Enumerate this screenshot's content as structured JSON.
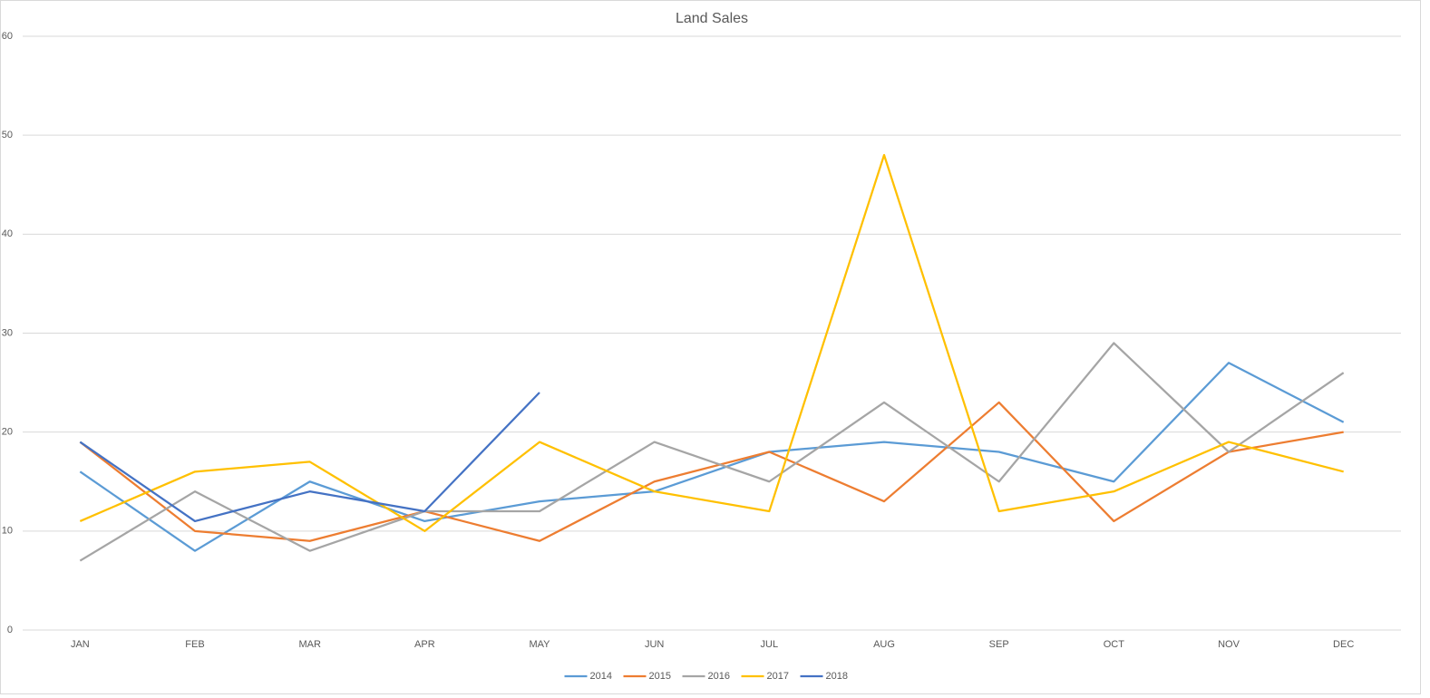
{
  "chart_data": {
    "type": "line",
    "title": "Land Sales",
    "categories": [
      "JAN",
      "FEB",
      "MAR",
      "APR",
      "MAY",
      "JUN",
      "JUL",
      "AUG",
      "SEP",
      "OCT",
      "NOV",
      "DEC"
    ],
    "series": [
      {
        "name": "2014",
        "color": "#5b9bd5",
        "values": [
          16,
          8,
          15,
          11,
          13,
          14,
          18,
          19,
          18,
          15,
          27,
          21
        ]
      },
      {
        "name": "2015",
        "color": "#ed7d31",
        "values": [
          19,
          10,
          9,
          12,
          9,
          15,
          18,
          13,
          23,
          11,
          18,
          20
        ]
      },
      {
        "name": "2016",
        "color": "#a5a5a5",
        "values": [
          7,
          14,
          8,
          12,
          12,
          19,
          15,
          23,
          15,
          29,
          18,
          26
        ]
      },
      {
        "name": "2017",
        "color": "#ffc000",
        "values": [
          11,
          16,
          17,
          10,
          19,
          14,
          12,
          48,
          12,
          14,
          19,
          16
        ]
      },
      {
        "name": "2018",
        "color": "#4472c4",
        "values": [
          19,
          11,
          14,
          12,
          24,
          null,
          null,
          null,
          null,
          null,
          null,
          null
        ]
      }
    ],
    "ylim": [
      0,
      60
    ],
    "yticks": [
      0,
      10,
      20,
      30,
      40,
      50,
      60
    ],
    "grid": true,
    "legend": "bottom"
  }
}
